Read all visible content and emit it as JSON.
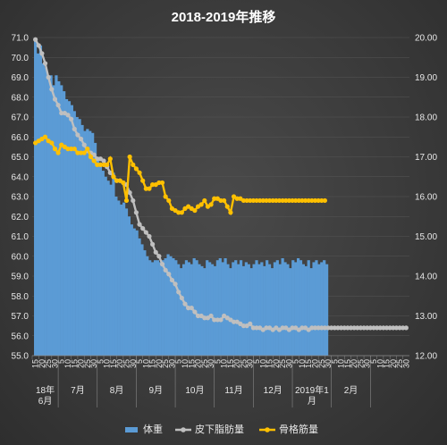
{
  "chart_data": {
    "type": "bar+line",
    "title": "2018-2019年推移",
    "y_left": {
      "min": 55.0,
      "max": 71.0,
      "step": 1.0,
      "ticks": [
        "55.0",
        "56.0",
        "57.0",
        "58.0",
        "59.0",
        "60.0",
        "61.0",
        "62.0",
        "63.0",
        "64.0",
        "65.0",
        "66.0",
        "67.0",
        "68.0",
        "69.0",
        "70.0",
        "71.0"
      ]
    },
    "y_right": {
      "min": 12.0,
      "max": 20.0,
      "step": 1.0,
      "ticks": [
        "12.00",
        "13.00",
        "14.00",
        "15.00",
        "16.00",
        "17.00",
        "18.00",
        "19.00",
        "20.00"
      ]
    },
    "x_tick_labels": [
      "15",
      "20",
      "25",
      "30",
      "5",
      "10",
      "15",
      "20",
      "25",
      "30",
      "5",
      "10",
      "15",
      "20",
      "25",
      "30",
      "5",
      "10",
      "15",
      "20",
      "25",
      "30",
      "5",
      "10",
      "15",
      "20",
      "25",
      "30",
      "5",
      "10",
      "15",
      "20",
      "25",
      "30",
      "5",
      "10",
      "15",
      "20",
      "25",
      "30",
      "5",
      "10",
      "15",
      "20",
      "25",
      "30",
      "5",
      "10",
      "15",
      "20",
      "25",
      "30",
      "5",
      "10",
      "15",
      "20",
      "25",
      "30"
    ],
    "months": [
      {
        "label": "18年\n6月",
        "start": 0,
        "end": 3
      },
      {
        "label": "7月",
        "start": 4,
        "end": 9
      },
      {
        "label": "8月",
        "start": 10,
        "end": 15
      },
      {
        "label": "9月",
        "start": 16,
        "end": 21
      },
      {
        "label": "10月",
        "start": 22,
        "end": 27
      },
      {
        "label": "11月",
        "start": 28,
        "end": 33
      },
      {
        "label": "12月",
        "start": 34,
        "end": 39
      },
      {
        "label": "2019年1\n月",
        "start": 40,
        "end": 45
      },
      {
        "label": "2月",
        "start": 46,
        "end": 51
      }
    ],
    "series": [
      {
        "name": "体重",
        "type": "bar",
        "axis": "left",
        "color": "#5b9bd5",
        "x": [
          0.0,
          0.4,
          0.8,
          1.2,
          1.6,
          2.0,
          2.4,
          2.8,
          3.2,
          3.6,
          4.0,
          4.4,
          4.8,
          5.2,
          5.6,
          6.0,
          6.4,
          6.8,
          7.2,
          7.6,
          8.0,
          8.4,
          8.8,
          9.2,
          9.6,
          10.0,
          10.4,
          10.8,
          11.2,
          11.6,
          12.0,
          12.4,
          12.8,
          13.2,
          13.6,
          14.0,
          14.4,
          14.8,
          15.2,
          15.6,
          16.0,
          16.4,
          16.8,
          17.2,
          17.6,
          18.0,
          18.4,
          18.8,
          19.2,
          19.6,
          20.0,
          20.4,
          20.8,
          21.2,
          21.6,
          22.0,
          22.4,
          22.8,
          23.2,
          23.6,
          24.0,
          24.4,
          24.8,
          25.2,
          25.6,
          26.0,
          26.4,
          26.8,
          27.2,
          27.6,
          28.0,
          28.4,
          28.8,
          29.2,
          29.6,
          30.0,
          30.4,
          30.8,
          31.2,
          31.6,
          32.0,
          32.4,
          32.8,
          33.2,
          33.6,
          34.0,
          34.4,
          34.8,
          35.2,
          35.6,
          36.0,
          36.4,
          36.8,
          37.2,
          37.6,
          38.0,
          38.4,
          38.8,
          39.2,
          39.6,
          40.0,
          40.4,
          40.8,
          41.2,
          41.6,
          42.0,
          42.4,
          42.8,
          43.2,
          43.6,
          44.0,
          44.4,
          44.8
        ],
        "values": [
          70.8,
          70.2,
          70.6,
          69.7,
          69.5,
          69.0,
          69.1,
          68.6,
          69.1,
          68.8,
          68.6,
          68.3,
          67.9,
          67.8,
          67.6,
          67.3,
          67.0,
          66.9,
          66.6,
          66.3,
          66.4,
          66.3,
          66.2,
          65.7,
          65.0,
          64.6,
          64.3,
          64.0,
          63.8,
          63.6,
          64.2,
          63.0,
          62.8,
          62.6,
          62.7,
          62.4,
          62.0,
          61.6,
          61.4,
          61.3,
          60.9,
          60.6,
          60.3,
          60.0,
          59.8,
          59.7,
          59.8,
          59.8,
          59.7,
          59.8,
          59.9,
          60.1,
          60.0,
          59.9,
          59.8,
          59.6,
          59.4,
          59.6,
          59.8,
          59.7,
          59.6,
          59.9,
          59.8,
          59.6,
          59.5,
          59.4,
          59.8,
          59.7,
          59.6,
          59.5,
          59.8,
          59.9,
          59.7,
          59.9,
          59.6,
          59.4,
          59.7,
          59.8,
          59.6,
          59.8,
          59.5,
          59.7,
          59.6,
          59.4,
          59.6,
          59.8,
          59.6,
          59.7,
          59.5,
          59.8,
          59.6,
          59.4,
          59.7,
          59.8,
          59.6,
          59.9,
          59.7,
          59.6,
          59.4,
          59.8,
          59.7,
          59.9,
          59.8,
          59.6,
          59.5,
          59.8,
          59.4,
          59.7,
          59.8,
          59.6,
          59.7,
          59.8,
          59.6
        ]
      },
      {
        "name": "皮下脂肪量",
        "type": "line",
        "axis": "right",
        "color": "#bfbfbf",
        "x": [
          0,
          0.5,
          1,
          1.5,
          2,
          2.5,
          3,
          3.5,
          4,
          4.5,
          5,
          5.5,
          6,
          6.5,
          7,
          7.5,
          8,
          8.5,
          9,
          9.5,
          10,
          10.5,
          11,
          11.5,
          12,
          12.5,
          13,
          13.5,
          14,
          14.5,
          15,
          15.5,
          16,
          16.5,
          17,
          17.5,
          18,
          18.5,
          19,
          19.5,
          20,
          20.5,
          21,
          21.5,
          22,
          22.5,
          23,
          23.5,
          24,
          24.5,
          25,
          25.5,
          26,
          26.5,
          27,
          27.5,
          28,
          28.5,
          29,
          29.5,
          30,
          30.5,
          31,
          31.5,
          32,
          32.5,
          33,
          33.5,
          34,
          34.5,
          35,
          35.5,
          36,
          36.5,
          37,
          37.5,
          38,
          38.5,
          39,
          39.5,
          40,
          40.5,
          41,
          41.5,
          42,
          42.5,
          43,
          43.5,
          44,
          44.5,
          45,
          45.5,
          46,
          46.5,
          47,
          47.5,
          48,
          48.5,
          49,
          49.5,
          50,
          50.5,
          51,
          51.5,
          52,
          52.5,
          53,
          53.5,
          54,
          54.5,
          55,
          55.5,
          56,
          56.5,
          57
        ],
        "values": [
          19.95,
          19.8,
          19.6,
          19.35,
          19.0,
          18.7,
          18.45,
          18.3,
          18.1,
          18.1,
          18.05,
          17.95,
          17.7,
          17.55,
          17.45,
          17.3,
          17.15,
          17.1,
          17.05,
          16.95,
          16.95,
          16.9,
          16.75,
          16.6,
          16.5,
          16.4,
          16.4,
          16.35,
          16.3,
          16.1,
          15.9,
          15.6,
          15.3,
          15.2,
          15.1,
          15.0,
          14.8,
          14.6,
          14.5,
          14.3,
          14.15,
          14.05,
          13.9,
          13.8,
          13.6,
          13.45,
          13.3,
          13.2,
          13.2,
          13.1,
          13.0,
          13.0,
          12.95,
          12.95,
          13.0,
          12.9,
          12.9,
          12.9,
          13.0,
          12.95,
          12.9,
          12.85,
          12.85,
          12.8,
          12.75,
          12.75,
          12.8,
          12.7,
          12.7,
          12.7,
          12.65,
          12.7,
          12.7,
          12.65,
          12.7,
          12.65,
          12.7,
          12.7,
          12.65,
          12.7,
          12.7,
          12.65,
          12.7,
          12.7,
          12.65,
          12.7,
          12.7,
          12.7,
          12.7,
          12.7,
          12.7,
          12.7,
          12.7,
          12.7,
          12.7,
          12.7,
          12.7,
          12.7,
          12.7,
          12.7,
          12.7,
          12.7,
          12.7,
          12.7,
          12.7,
          12.7,
          12.7,
          12.7,
          12.7,
          12.7,
          12.7,
          12.7,
          12.7,
          12.7,
          12.7
        ]
      },
      {
        "name": "骨格筋量",
        "type": "line",
        "axis": "right",
        "color": "#ffc000",
        "x": [
          0,
          0.5,
          1,
          1.5,
          2,
          2.5,
          3,
          3.5,
          4,
          4.5,
          5,
          5.5,
          6,
          6.5,
          7,
          7.5,
          8,
          8.5,
          9,
          9.5,
          10,
          10.5,
          11,
          11.5,
          12,
          12.5,
          13,
          13.5,
          14,
          14.5,
          15,
          15.5,
          16,
          16.5,
          17,
          17.5,
          18,
          18.5,
          19,
          19.5,
          20,
          20.5,
          21,
          21.5,
          22,
          22.5,
          23,
          23.5,
          24,
          24.5,
          25,
          25.5,
          26,
          26.5,
          27,
          27.5,
          28,
          28.5,
          29,
          29.5,
          30,
          30.5,
          31,
          31.5,
          32,
          32.5,
          33,
          33.5,
          34,
          34.5,
          35,
          35.5,
          36,
          36.5,
          37,
          37.5,
          38,
          38.5,
          39,
          39.5,
          40,
          40.5,
          41,
          41.5,
          42,
          42.5,
          43,
          43.5,
          44,
          44.5
        ],
        "values": [
          17.35,
          17.4,
          17.45,
          17.5,
          17.4,
          17.35,
          17.2,
          17.1,
          17.3,
          17.25,
          17.2,
          17.2,
          17.2,
          17.1,
          17.1,
          17.1,
          17.2,
          17.0,
          16.9,
          16.8,
          16.8,
          16.8,
          16.8,
          16.95,
          16.5,
          16.4,
          16.4,
          16.35,
          15.9,
          17.0,
          16.8,
          16.7,
          16.6,
          16.4,
          16.2,
          16.2,
          16.3,
          16.3,
          16.35,
          16.35,
          16.0,
          15.9,
          15.7,
          15.65,
          15.6,
          15.6,
          15.7,
          15.75,
          15.7,
          15.65,
          15.75,
          15.8,
          15.9,
          15.75,
          15.8,
          15.95,
          15.95,
          15.9,
          15.9,
          15.75,
          15.6,
          16.0,
          15.95,
          15.95,
          15.9,
          15.9,
          15.9,
          15.9,
          15.9,
          15.9,
          15.9,
          15.9,
          15.9,
          15.9,
          15.9,
          15.9,
          15.9,
          15.9,
          15.9,
          15.9,
          15.9,
          15.9,
          15.9,
          15.9,
          15.9,
          15.9,
          15.9,
          15.9,
          15.9,
          15.9
        ]
      }
    ],
    "legend": {
      "position": "bottom",
      "items": [
        "体重",
        "皮下脂肪量",
        "骨格筋量"
      ]
    },
    "grid": true
  }
}
